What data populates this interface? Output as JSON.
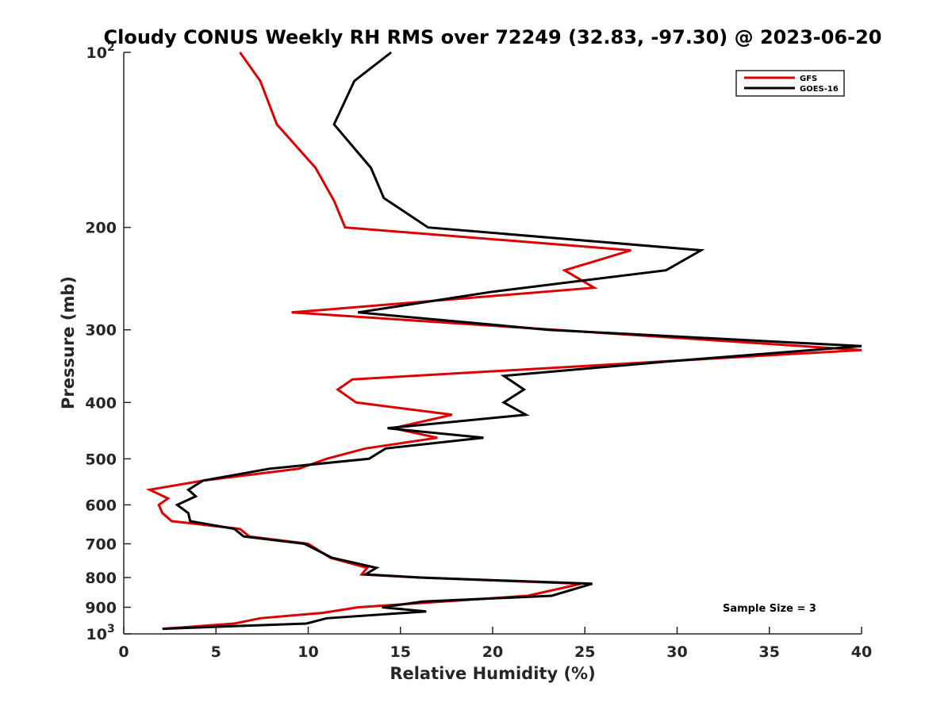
{
  "chart_data": {
    "type": "line",
    "title": "Cloudy CONUS Weekly RH RMS over 72249 (32.83, -97.30) @ 2023-06-20",
    "xlabel": "Relative Humidity (%)",
    "ylabel": "Pressure (mb)",
    "xlim": [
      0,
      40
    ],
    "ylim": [
      100,
      1000
    ],
    "y_scale": "log",
    "y_reversed": true,
    "grid": false,
    "legend_position": "top-right",
    "x_ticks": [
      "0",
      "5",
      "10",
      "15",
      "20",
      "25",
      "30",
      "35",
      "40"
    ],
    "y_ticks": [
      {
        "value": 100,
        "base": "10",
        "exp": "2"
      },
      {
        "value": 200,
        "label": "200"
      },
      {
        "value": 300,
        "label": "300"
      },
      {
        "value": 400,
        "label": "400"
      },
      {
        "value": 500,
        "label": "500"
      },
      {
        "value": 600,
        "label": "600"
      },
      {
        "value": 700,
        "label": "700"
      },
      {
        "value": 800,
        "label": "800"
      },
      {
        "value": 900,
        "label": "900"
      },
      {
        "value": 1000,
        "base": "10",
        "exp": "3"
      }
    ],
    "annotation": "Sample Size = 3",
    "series": [
      {
        "name": "GFS",
        "color": "#dd0000",
        "points": [
          [
            6.3,
            100
          ],
          [
            7.4,
            112
          ],
          [
            8.3,
            133
          ],
          [
            10.4,
            158
          ],
          [
            11.4,
            180
          ],
          [
            12.0,
            200
          ],
          [
            27.5,
            219
          ],
          [
            23.9,
            237
          ],
          [
            25.5,
            254
          ],
          [
            9.1,
            280
          ],
          [
            40,
            325
          ],
          [
            12.4,
            365
          ],
          [
            11.6,
            380
          ],
          [
            12.6,
            400
          ],
          [
            17.8,
            420
          ],
          [
            14.6,
            443
          ],
          [
            17.0,
            460
          ],
          [
            13.1,
            480
          ],
          [
            11.0,
            500
          ],
          [
            9.5,
            520
          ],
          [
            4.3,
            545
          ],
          [
            1.4,
            565
          ],
          [
            2.4,
            585
          ],
          [
            1.9,
            600
          ],
          [
            2.1,
            620
          ],
          [
            2.6,
            640
          ],
          [
            6.3,
            660
          ],
          [
            6.8,
            680
          ],
          [
            10.0,
            700
          ],
          [
            11.2,
            740
          ],
          [
            13.2,
            770
          ],
          [
            12.9,
            790
          ],
          [
            16.0,
            800
          ],
          [
            24.8,
            820
          ],
          [
            21.9,
            860
          ],
          [
            12.7,
            900
          ],
          [
            10.8,
            920
          ],
          [
            7.4,
            940
          ],
          [
            6.0,
            960
          ],
          [
            2.1,
            980
          ]
        ]
      },
      {
        "name": "GOES-16",
        "color": "#000000",
        "points": [
          [
            14.5,
            100
          ],
          [
            12.5,
            112
          ],
          [
            11.4,
            133
          ],
          [
            13.4,
            158
          ],
          [
            14.1,
            178
          ],
          [
            16.5,
            200
          ],
          [
            31.3,
            219
          ],
          [
            29.4,
            237
          ],
          [
            20.0,
            258
          ],
          [
            12.7,
            280
          ],
          [
            23.0,
            300
          ],
          [
            40,
            320
          ],
          [
            29.5,
            340
          ],
          [
            20.6,
            360
          ],
          [
            21.7,
            380
          ],
          [
            20.6,
            400
          ],
          [
            21.8,
            420
          ],
          [
            14.3,
            443
          ],
          [
            19.5,
            460
          ],
          [
            14.2,
            480
          ],
          [
            13.3,
            500
          ],
          [
            7.9,
            520
          ],
          [
            4.3,
            545
          ],
          [
            3.5,
            565
          ],
          [
            3.9,
            580
          ],
          [
            2.9,
            600
          ],
          [
            3.5,
            620
          ],
          [
            3.6,
            640
          ],
          [
            6.0,
            660
          ],
          [
            6.5,
            680
          ],
          [
            9.8,
            700
          ],
          [
            11.3,
            740
          ],
          [
            13.7,
            770
          ],
          [
            13.1,
            790
          ],
          [
            16.1,
            800
          ],
          [
            25.4,
            820
          ],
          [
            23.2,
            860
          ],
          [
            16.2,
            880
          ],
          [
            14.0,
            900
          ],
          [
            16.4,
            915
          ],
          [
            11.0,
            940
          ],
          [
            9.9,
            960
          ],
          [
            2.1,
            980
          ]
        ]
      }
    ]
  }
}
